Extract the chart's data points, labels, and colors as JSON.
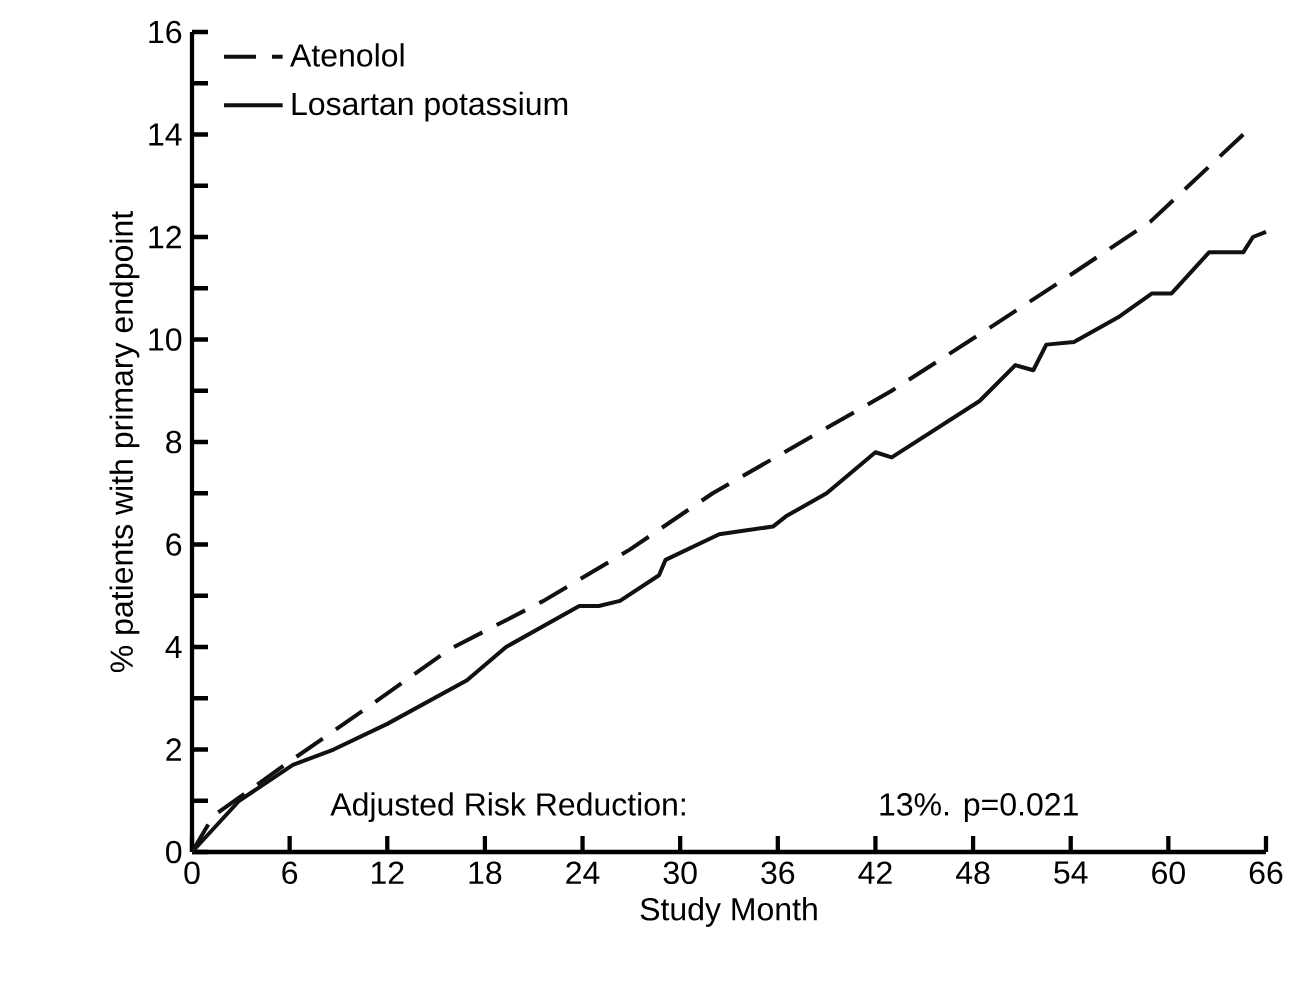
{
  "chart_data": {
    "type": "line",
    "xlabel": "Study Month",
    "ylabel": "% patients with primary endpoint",
    "annotations": [
      "Adjusted Risk Reduction:",
      "13%. p=0.021"
    ],
    "xlim": [
      0,
      66
    ],
    "ylim": [
      0,
      16
    ],
    "xticks": [
      0,
      6,
      12,
      18,
      24,
      30,
      36,
      42,
      48,
      54,
      60,
      66
    ],
    "yticks": [
      0,
      {
        "value": 1,
        "label": null
      },
      2,
      {
        "value": 3,
        "label": null
      },
      4,
      {
        "value": 5,
        "label": null
      },
      6,
      {
        "value": 7,
        "label": null
      },
      8,
      {
        "value": 9,
        "label": null
      },
      10,
      {
        "value": 11,
        "label": null
      },
      12,
      {
        "value": 13,
        "label": null
      },
      14,
      {
        "value": 15,
        "label": null
      },
      16
    ],
    "legend": "top left",
    "marker": "none",
    "series": [
      {
        "name": "Atenolol",
        "color": "#111111",
        "line_style": "dashed",
        "x": [
          0,
          1.3,
          5.7,
          10.7,
          15.8,
          21.6,
          26.9,
          32,
          43,
          48.4,
          53.7,
          58.9,
          64.6
        ],
        "values": [
          0,
          0.7,
          1.7,
          2.8,
          3.95,
          4.9,
          5.9,
          7.0,
          9.0,
          10.1,
          11.2,
          12.3,
          14.0
        ]
      },
      {
        "name": "Losartan potassium",
        "color": "#111111",
        "line_style": "solid",
        "x": [
          0,
          2.9,
          6.2,
          8.7,
          12,
          16.9,
          19.3,
          23.8,
          25,
          26.3,
          28.7,
          29.1,
          32.4,
          35.7,
          36.5,
          39,
          42,
          43,
          48.4,
          50.6,
          51.7,
          52.5,
          54.2,
          57,
          59,
          60.2,
          62.5,
          64.6,
          65.2,
          66
        ],
        "values": [
          0,
          1.0,
          1.7,
          2.0,
          2.5,
          3.35,
          4.0,
          4.8,
          4.8,
          4.9,
          5.4,
          5.7,
          6.2,
          6.35,
          6.55,
          7.0,
          7.8,
          7.7,
          8.8,
          9.5,
          9.4,
          9.9,
          9.95,
          10.45,
          10.9,
          10.9,
          11.7,
          11.7,
          12.0,
          12.1
        ]
      }
    ]
  }
}
